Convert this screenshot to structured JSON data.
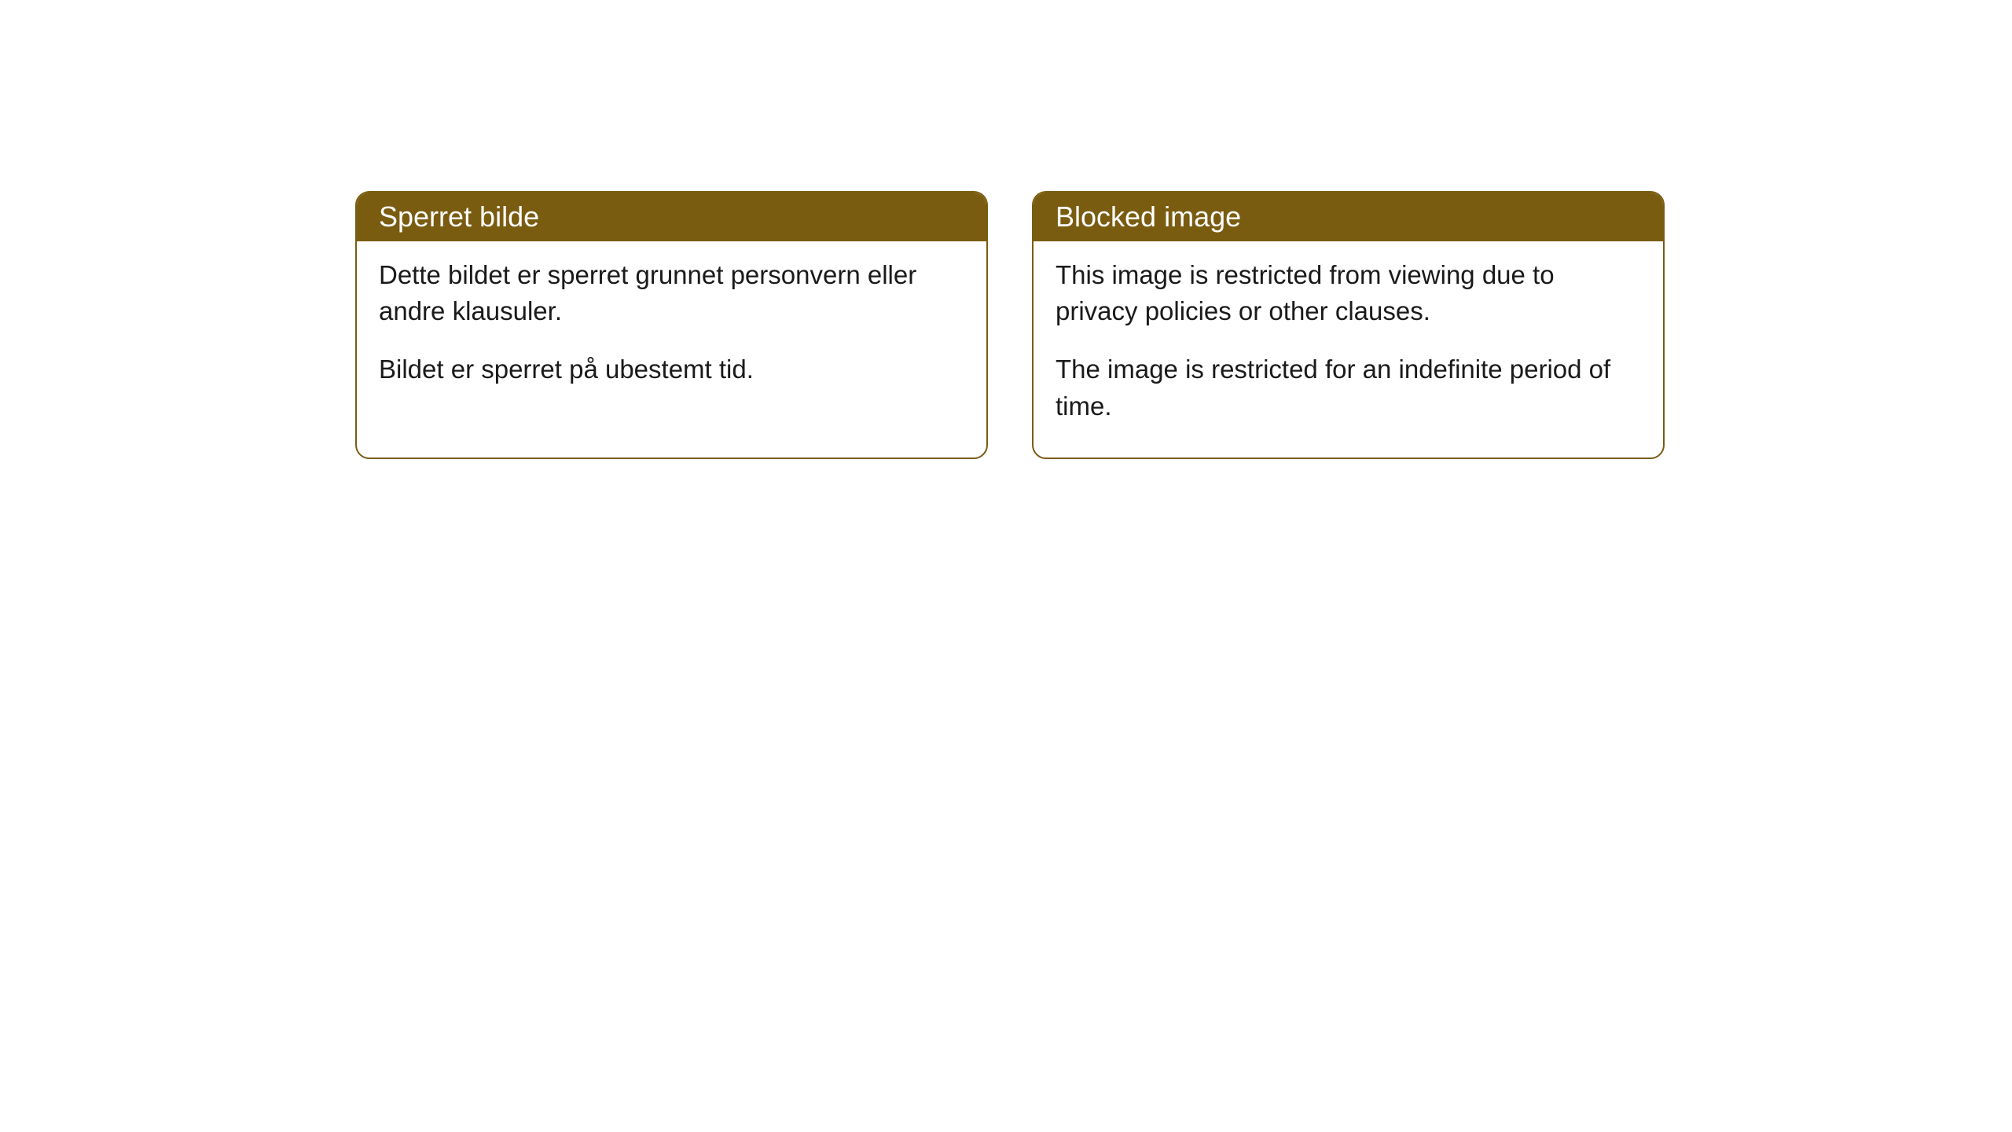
{
  "cards": [
    {
      "header": "Sperret bilde",
      "paragraph1": "Dette bildet er sperret grunnet personvern eller andre klausuler.",
      "paragraph2": "Bildet er sperret på ubestemt tid."
    },
    {
      "header": "Blocked image",
      "paragraph1": "This image is restricted from viewing due to privacy policies or other clauses.",
      "paragraph2": "The image is restricted for an indefinite period of time."
    }
  ],
  "styling": {
    "header_bg_color": "#7a5c11",
    "header_text_color": "#ffffff",
    "body_text_color": "#1a1a1a",
    "card_border_color": "#7a5c11",
    "card_bg_color": "#ffffff",
    "page_bg_color": "#ffffff",
    "border_radius": 18,
    "header_fontsize": 36,
    "body_fontsize": 33
  }
}
